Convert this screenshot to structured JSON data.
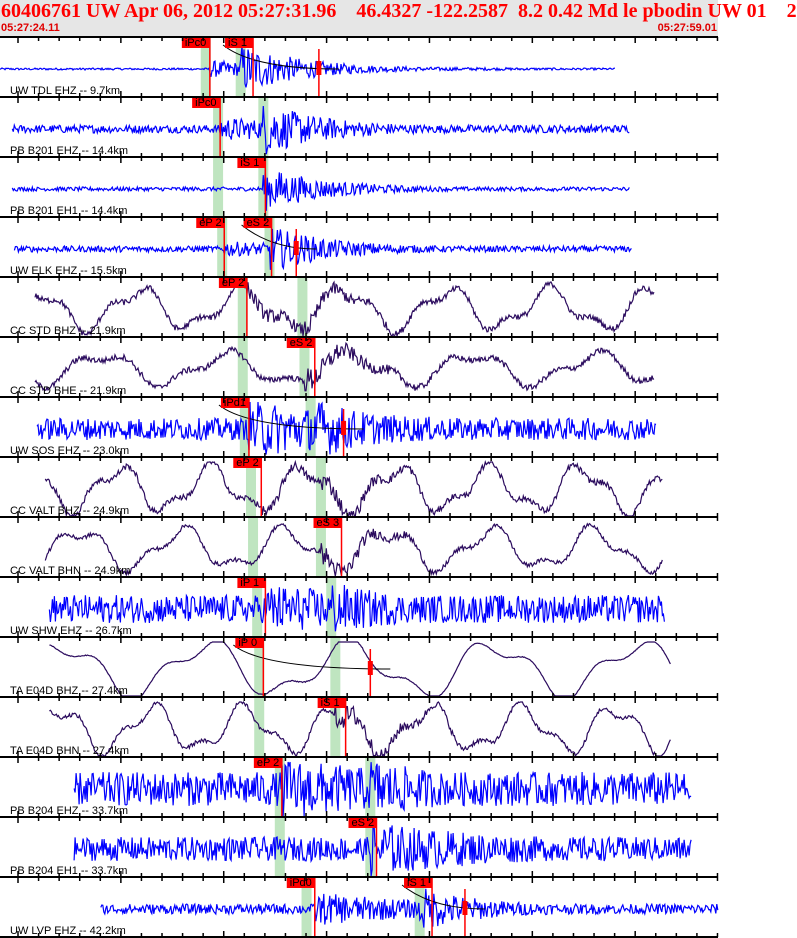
{
  "header": {
    "title": "60406761 UW Apr 06, 2012 05:27:31.96    46.4327 -122.2587  8.2 0.42 Md le pbodin UW 01    2",
    "start_time": "05:27:24.11",
    "end_time": "05:27:59.01",
    "background": "#e6e6e6",
    "text_color": "#ff0000"
  },
  "chart_data": {
    "type": "line",
    "x_unit": "seconds after 05:27:24.11",
    "xlim": [
      0,
      34.9
    ],
    "tick_interval_s": 1,
    "colors": {
      "short_period": "#0000ff",
      "broadband": "#2b0b5e",
      "pick": "#ff0000",
      "theoretical_band": "#bfe5c0"
    },
    "traces": [
      {
        "label": "UW TDL EHZ -- 9.7km",
        "color": "#0000ff",
        "span_s": [
          0,
          29.9
        ],
        "picks": [
          {
            "label": "iPc0",
            "time_s": 10.2
          },
          {
            "label": "iS 1",
            "time_s": 12.3
          }
        ],
        "theoretical_s": [
          10.0,
          11.7
        ],
        "coda_s": 15.5
      },
      {
        "label": "PB B201 EHZ -- 14.4km",
        "color": "#0000ff",
        "span_s": [
          0.6,
          30.6
        ],
        "picks": [
          {
            "label": "iPc0",
            "time_s": 10.7
          }
        ],
        "theoretical_s": [
          10.6,
          12.8
        ]
      },
      {
        "label": "PB B201 EH1 -- 14.4km",
        "color": "#0000ff",
        "span_s": [
          0.6,
          30.6
        ],
        "picks": [
          {
            "label": "iS 1",
            "time_s": 12.9
          }
        ],
        "theoretical_s": [
          10.6,
          12.8
        ]
      },
      {
        "label": "UW ELK EHZ -- 15.5km",
        "color": "#0000ff",
        "span_s": [
          0.7,
          30.7
        ],
        "picks": [
          {
            "label": "eP 2",
            "time_s": 10.9
          },
          {
            "label": "eS 2",
            "time_s": 13.2
          }
        ],
        "theoretical_s": [
          10.8,
          13.1
        ],
        "coda_s": 14.4
      },
      {
        "label": "CC STD BHZ -- 21.9km",
        "color": "#2b0b5e",
        "span_s": [
          1.7,
          31.8
        ],
        "picks": [
          {
            "label": "eP 2",
            "time_s": 12.0
          }
        ],
        "theoretical_s": [
          11.8,
          14.7
        ]
      },
      {
        "label": "CC STD BHE -- 21.9km",
        "color": "#2b0b5e",
        "span_s": [
          1.7,
          31.8
        ],
        "picks": [
          {
            "label": "eS 2",
            "time_s": 15.3
          }
        ],
        "theoretical_s": [
          11.8,
          14.8
        ]
      },
      {
        "label": "UW SOS EHZ -- 23.0km",
        "color": "#0000ff",
        "span_s": [
          1.8,
          31.9
        ],
        "picks": [
          {
            "label": "iPd1",
            "time_s": 12.1
          }
        ],
        "theoretical_s": [
          11.9,
          15.1
        ],
        "coda_s": 16.7
      },
      {
        "label": "CC VALT BHZ -- 24.9km",
        "color": "#2b0b5e",
        "span_s": [
          2.2,
          32.2
        ],
        "picks": [
          {
            "label": "eP 2",
            "time_s": 12.7
          }
        ],
        "theoretical_s": [
          12.2,
          15.6
        ]
      },
      {
        "label": "CC VALT BHN -- 24.9km",
        "color": "#2b0b5e",
        "span_s": [
          2.2,
          32.2
        ],
        "picks": [
          {
            "label": "eS 3",
            "time_s": 16.6
          }
        ],
        "theoretical_s": [
          12.3,
          15.6
        ]
      },
      {
        "label": "UW SHW EHZ -- 26.7km",
        "color": "#0000ff",
        "span_s": [
          2.4,
          32.3
        ],
        "picks": [
          {
            "label": "iP 1",
            "time_s": 12.9
          }
        ],
        "theoretical_s": [
          12.5,
          16.1
        ]
      },
      {
        "label": "TA E04D BHZ -- 27.4km",
        "color": "#2b0b5e",
        "span_s": [
          2.4,
          32.6
        ],
        "picks": [
          {
            "label": "iP 0",
            "time_s": 12.8
          }
        ],
        "theoretical_s": [
          12.6,
          16.3
        ],
        "coda_s": 18.0
      },
      {
        "label": "TA E04D BHN -- 27.4km",
        "color": "#2b0b5e",
        "span_s": [
          2.4,
          32.6
        ],
        "picks": [
          {
            "label": "iS 1",
            "time_s": 16.8
          }
        ],
        "theoretical_s": [
          12.6,
          16.3
        ]
      },
      {
        "label": "PB B204 EHZ -- 33.7km",
        "color": "#0000ff",
        "span_s": [
          3.6,
          33.6
        ],
        "picks": [
          {
            "label": "eP 2",
            "time_s": 13.7
          }
        ],
        "theoretical_s": [
          13.6,
          18.0
        ]
      },
      {
        "label": "PB B204 EH1 -- 33.7km",
        "color": "#0000ff",
        "span_s": [
          3.6,
          33.6
        ],
        "picks": [
          {
            "label": "eS 2",
            "time_s": 18.3
          }
        ],
        "theoretical_s": [
          13.6,
          18.0
        ]
      },
      {
        "label": "UW LVP EHZ -- 42.2km",
        "color": "#0000ff",
        "span_s": [
          4.9,
          34.9
        ],
        "picks": [
          {
            "label": "iPd0",
            "time_s": 15.3
          },
          {
            "label": "iS 1",
            "time_s": 21.0
          }
        ],
        "theoretical_s": [
          14.9,
          20.4
        ],
        "coda_s": 22.6
      }
    ]
  }
}
